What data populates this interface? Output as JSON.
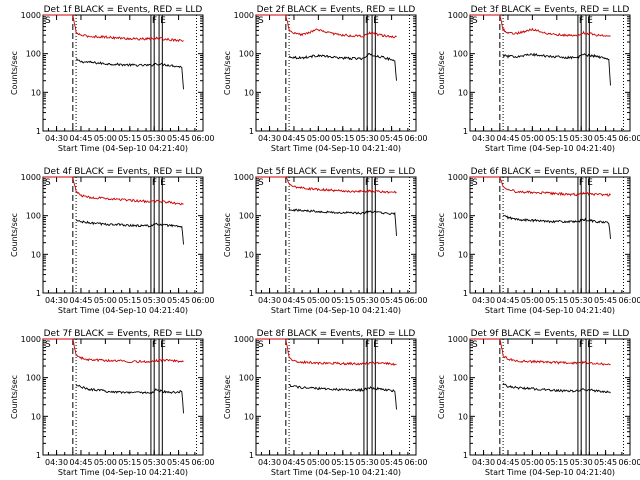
{
  "figure": {
    "colors": {
      "events": "#000000",
      "lld": "#cc0000",
      "axes": "#000000",
      "background": "#ffffff"
    }
  },
  "chart_data": [
    {
      "type": "line",
      "title": "Det 1f BLACK = Events, RED = LLD",
      "xlabel": "Start Time (04-Sep-10 04:21:40)",
      "ylabel": "Counts/sec",
      "yscale": "log",
      "ylim": [
        1,
        1000
      ],
      "yticks": [
        "1",
        "10",
        "100",
        "1000"
      ],
      "xticks": [
        "04:30",
        "04:45",
        "05:00",
        "05:15",
        "05:30",
        "05:45",
        "06:00"
      ],
      "xlim": [
        "04:21:40",
        "06:00:00"
      ],
      "annotations": {
        "S": "S",
        "F": "F",
        "E": "E"
      },
      "series": [
        {
          "name": "Events",
          "color": "#000000",
          "x": [
            "04:42",
            "04:45",
            "04:50",
            "05:00",
            "05:10",
            "05:20",
            "05:28",
            "05:31",
            "05:40",
            "05:47",
            "05:48"
          ],
          "values": [
            70,
            62,
            60,
            55,
            52,
            50,
            50,
            55,
            50,
            45,
            12
          ]
        },
        {
          "name": "LLD",
          "color": "#cc0000",
          "x": [
            "04:21:40",
            "04:40",
            "04:42",
            "04:45",
            "04:50",
            "05:00",
            "05:10",
            "05:20",
            "05:28",
            "05:31",
            "05:40",
            "05:48"
          ],
          "values": [
            1000,
            1000,
            350,
            300,
            280,
            270,
            250,
            240,
            240,
            250,
            230,
            220
          ]
        }
      ]
    },
    {
      "type": "line",
      "title": "Det 2f BLACK = Events, RED = LLD",
      "xlabel": "Start Time (04-Sep-10 04:21:40)",
      "ylabel": "Counts/sec",
      "yscale": "log",
      "ylim": [
        1,
        1000
      ],
      "yticks": [
        "1",
        "10",
        "100",
        "1000"
      ],
      "xticks": [
        "04:30",
        "04:45",
        "05:00",
        "05:15",
        "05:30",
        "05:45",
        "06:00"
      ],
      "xlim": [
        "04:21:40",
        "06:00:00"
      ],
      "annotations": {
        "S": "S",
        "F": "F",
        "E": "E"
      },
      "series": [
        {
          "name": "Events",
          "color": "#000000",
          "x": [
            "04:42",
            "04:45",
            "04:50",
            "05:00",
            "05:10",
            "05:20",
            "05:28",
            "05:31",
            "05:40",
            "05:47",
            "05:48"
          ],
          "values": [
            85,
            80,
            78,
            90,
            80,
            75,
            75,
            95,
            80,
            65,
            20
          ]
        },
        {
          "name": "LLD",
          "color": "#cc0000",
          "x": [
            "04:21:40",
            "04:40",
            "04:42",
            "04:45",
            "04:50",
            "05:00",
            "05:10",
            "05:20",
            "05:28",
            "05:31",
            "05:40",
            "05:48"
          ],
          "values": [
            1000,
            1000,
            400,
            330,
            310,
            420,
            320,
            290,
            280,
            340,
            290,
            270
          ]
        }
      ]
    },
    {
      "type": "line",
      "title": "Det 3f BLACK = Events, RED = LLD",
      "xlabel": "Start Time (04-Sep-10 04:21:40)",
      "ylabel": "Counts/sec",
      "yscale": "log",
      "ylim": [
        1,
        1000
      ],
      "yticks": [
        "1",
        "10",
        "100",
        "1000"
      ],
      "xticks": [
        "04:30",
        "04:45",
        "05:00",
        "05:15",
        "05:30",
        "05:45",
        "06:00"
      ],
      "xlim": [
        "04:21:40",
        "06:00:00"
      ],
      "annotations": {
        "S": "S",
        "F": "F",
        "E": "E"
      },
      "series": [
        {
          "name": "Events",
          "color": "#000000",
          "x": [
            "04:42",
            "04:45",
            "04:50",
            "05:00",
            "05:10",
            "05:20",
            "05:28",
            "05:31",
            "05:40",
            "05:47",
            "05:48"
          ],
          "values": [
            90,
            85,
            85,
            95,
            85,
            80,
            80,
            95,
            85,
            70,
            15
          ]
        },
        {
          "name": "LLD",
          "color": "#cc0000",
          "x": [
            "04:21:40",
            "04:40",
            "04:42",
            "04:45",
            "04:50",
            "05:00",
            "05:10",
            "05:20",
            "05:28",
            "05:31",
            "05:40",
            "05:48"
          ],
          "values": [
            1000,
            1000,
            420,
            350,
            330,
            430,
            330,
            300,
            290,
            350,
            300,
            280
          ]
        }
      ]
    },
    {
      "type": "line",
      "title": "Det 4f BLACK = Events, RED = LLD",
      "xlabel": "Start Time (04-Sep-10 04:21:40)",
      "ylabel": "Counts/sec",
      "yscale": "log",
      "ylim": [
        1,
        1000
      ],
      "yticks": [
        "1",
        "10",
        "100",
        "1000"
      ],
      "xticks": [
        "04:30",
        "04:45",
        "05:00",
        "05:15",
        "05:30",
        "05:45",
        "06:00"
      ],
      "xlim": [
        "04:21:40",
        "06:00:00"
      ],
      "annotations": {
        "S": "S",
        "F": "F",
        "E": "E"
      },
      "series": [
        {
          "name": "Events",
          "color": "#000000",
          "x": [
            "04:42",
            "04:45",
            "04:50",
            "05:00",
            "05:10",
            "05:20",
            "05:28",
            "05:31",
            "05:40",
            "05:47",
            "05:48"
          ],
          "values": [
            75,
            70,
            65,
            60,
            58,
            55,
            55,
            60,
            55,
            50,
            18
          ]
        },
        {
          "name": "LLD",
          "color": "#cc0000",
          "x": [
            "04:21:40",
            "04:40",
            "04:42",
            "04:45",
            "04:50",
            "05:00",
            "05:10",
            "05:20",
            "05:28",
            "05:31",
            "05:40",
            "05:48"
          ],
          "values": [
            1000,
            1000,
            420,
            330,
            300,
            280,
            260,
            240,
            230,
            240,
            220,
            200
          ]
        }
      ]
    },
    {
      "type": "line",
      "title": "Det 5f BLACK = Events, RED = LLD",
      "xlabel": "Start Time (04-Sep-10 04:21:40)",
      "ylabel": "Counts/sec",
      "yscale": "log",
      "ylim": [
        1,
        1000
      ],
      "yticks": [
        "1",
        "10",
        "100",
        "1000"
      ],
      "xticks": [
        "04:30",
        "04:45",
        "05:00",
        "05:15",
        "05:30",
        "05:45",
        "06:00"
      ],
      "xlim": [
        "04:21:40",
        "06:00:00"
      ],
      "annotations": {
        "S": "S",
        "F": "F",
        "E": "E"
      },
      "series": [
        {
          "name": "Events",
          "color": "#000000",
          "x": [
            "04:42",
            "04:45",
            "04:50",
            "05:00",
            "05:10",
            "05:20",
            "05:28",
            "05:31",
            "05:40",
            "05:47",
            "05:48"
          ],
          "values": [
            150,
            140,
            135,
            130,
            120,
            118,
            115,
            130,
            115,
            110,
            30
          ]
        },
        {
          "name": "LLD",
          "color": "#cc0000",
          "x": [
            "04:21:40",
            "04:40",
            "04:42",
            "04:45",
            "04:50",
            "05:00",
            "05:10",
            "05:20",
            "05:28",
            "05:31",
            "05:40",
            "05:48"
          ],
          "values": [
            1000,
            1000,
            650,
            560,
            520,
            480,
            450,
            430,
            420,
            440,
            410,
            400
          ]
        }
      ]
    },
    {
      "type": "line",
      "title": "Det 6f BLACK = Events, RED = LLD",
      "xlabel": "Start Time (04-Sep-10 04:21:40)",
      "ylabel": "Counts/sec",
      "yscale": "log",
      "ylim": [
        1,
        1000
      ],
      "yticks": [
        "1",
        "10",
        "100",
        "1000"
      ],
      "xticks": [
        "04:30",
        "04:45",
        "05:00",
        "05:15",
        "05:30",
        "05:45",
        "06:00"
      ],
      "xlim": [
        "04:21:40",
        "06:00:00"
      ],
      "annotations": {
        "S": "S",
        "F": "F",
        "E": "E"
      },
      "series": [
        {
          "name": "Events",
          "color": "#000000",
          "x": [
            "04:42",
            "04:45",
            "04:50",
            "05:00",
            "05:10",
            "05:20",
            "05:28",
            "05:31",
            "05:40",
            "05:47",
            "05:48"
          ],
          "values": [
            100,
            90,
            80,
            75,
            72,
            70,
            68,
            80,
            70,
            65,
            25
          ]
        },
        {
          "name": "LLD",
          "color": "#cc0000",
          "x": [
            "04:21:40",
            "04:40",
            "04:42",
            "04:45",
            "04:50",
            "05:00",
            "05:10",
            "05:20",
            "05:28",
            "05:31",
            "05:40",
            "05:48"
          ],
          "values": [
            1000,
            1000,
            600,
            480,
            420,
            400,
            380,
            360,
            350,
            380,
            350,
            340
          ]
        }
      ]
    },
    {
      "type": "line",
      "title": "Det 7f BLACK = Events, RED = LLD",
      "xlabel": "Start Time (04-Sep-10 04:21:40)",
      "ylabel": "Counts/sec",
      "yscale": "log",
      "ylim": [
        1,
        1000
      ],
      "yticks": [
        "1",
        "10",
        "100",
        "1000"
      ],
      "xticks": [
        "04:30",
        "04:45",
        "05:00",
        "05:15",
        "05:30",
        "05:45",
        "06:00"
      ],
      "xlim": [
        "04:21:40",
        "06:00:00"
      ],
      "annotations": {
        "S": "S",
        "F": "F",
        "E": "E"
      },
      "series": [
        {
          "name": "Events",
          "color": "#000000",
          "x": [
            "04:42",
            "04:45",
            "04:50",
            "05:00",
            "05:10",
            "05:20",
            "05:28",
            "05:31",
            "05:40",
            "05:47",
            "05:48"
          ],
          "values": [
            65,
            58,
            50,
            45,
            42,
            42,
            40,
            48,
            40,
            45,
            12
          ]
        },
        {
          "name": "LLD",
          "color": "#cc0000",
          "x": [
            "04:21:40",
            "04:40",
            "04:42",
            "04:45",
            "04:50",
            "05:00",
            "05:10",
            "05:20",
            "05:28",
            "05:31",
            "05:40",
            "05:48"
          ],
          "values": [
            1000,
            1000,
            380,
            320,
            290,
            280,
            270,
            260,
            250,
            280,
            280,
            260
          ]
        }
      ]
    },
    {
      "type": "line",
      "title": "Det 8f BLACK = Events, RED = LLD",
      "xlabel": "Start Time (04-Sep-10 04:21:40)",
      "ylabel": "Counts/sec",
      "yscale": "log",
      "ylim": [
        1,
        1000
      ],
      "yticks": [
        "1",
        "10",
        "100",
        "1000"
      ],
      "xticks": [
        "04:30",
        "04:45",
        "05:00",
        "05:15",
        "05:30",
        "05:45",
        "06:00"
      ],
      "xlim": [
        "04:21:40",
        "06:00:00"
      ],
      "annotations": {
        "S": "S",
        "F": "F",
        "E": "E"
      },
      "series": [
        {
          "name": "Events",
          "color": "#000000",
          "x": [
            "04:42",
            "04:45",
            "04:50",
            "05:00",
            "05:10",
            "05:20",
            "05:28",
            "05:31",
            "05:40",
            "05:47",
            "05:48"
          ],
          "values": [
            65,
            60,
            55,
            52,
            50,
            48,
            48,
            55,
            50,
            45,
            15
          ]
        },
        {
          "name": "LLD",
          "color": "#cc0000",
          "x": [
            "04:21:40",
            "04:40",
            "04:42",
            "04:45",
            "04:50",
            "05:00",
            "05:10",
            "05:20",
            "05:28",
            "05:31",
            "05:40",
            "05:48"
          ],
          "values": [
            1000,
            1000,
            330,
            270,
            250,
            240,
            235,
            230,
            225,
            240,
            235,
            220
          ]
        }
      ]
    },
    {
      "type": "line",
      "title": "Det 9f BLACK = Events, RED = LLD",
      "xlabel": "Start Time (04-Sep-10 04:21:40)",
      "ylabel": "Counts/sec",
      "yscale": "log",
      "ylim": [
        1,
        1000
      ],
      "yticks": [
        "1",
        "10",
        "100",
        "1000"
      ],
      "xticks": [
        "04:30",
        "04:45",
        "05:00",
        "05:15",
        "05:30",
        "05:45",
        "06:00"
      ],
      "xlim": [
        "04:21:40",
        "06:00:00"
      ],
      "annotations": {
        "S": "S",
        "F": "F",
        "E": "E"
      },
      "series": [
        {
          "name": "Events",
          "color": "#000000",
          "x": [
            "04:42",
            "04:45",
            "04:50",
            "05:00",
            "05:10",
            "05:20",
            "05:28",
            "05:31",
            "05:40",
            "05:47",
            "05:48"
          ],
          "values": [
            70,
            60,
            55,
            52,
            48,
            45,
            45,
            50,
            45,
            42,
            40
          ]
        },
        {
          "name": "LLD",
          "color": "#cc0000",
          "x": [
            "04:21:40",
            "04:40",
            "04:42",
            "04:45",
            "04:50",
            "05:00",
            "05:10",
            "05:20",
            "05:28",
            "05:31",
            "05:40",
            "05:48"
          ],
          "values": [
            1000,
            1000,
            380,
            300,
            270,
            260,
            250,
            240,
            235,
            250,
            230,
            220
          ]
        }
      ]
    }
  ]
}
